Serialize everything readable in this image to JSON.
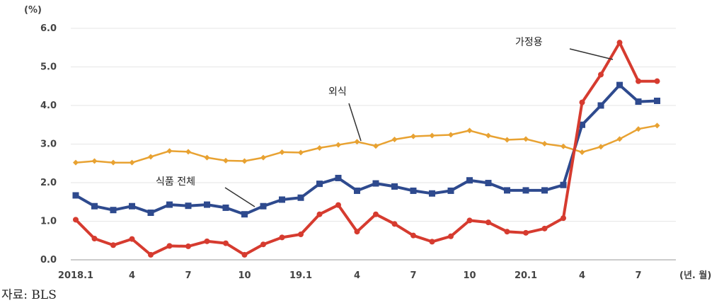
{
  "chart_data": {
    "type": "line",
    "y_unit_label": "(%)",
    "x_unit_label": "(년. 월)",
    "ylim": [
      0,
      6
    ],
    "y_ticks": [
      "0.0",
      "1.0",
      "2.0",
      "3.0",
      "4.0",
      "5.0",
      "6.0"
    ],
    "grid": "horizontal",
    "x_tick_labels": [
      {
        "index": 0,
        "label": "2018.1"
      },
      {
        "index": 3,
        "label": "4"
      },
      {
        "index": 6,
        "label": "7"
      },
      {
        "index": 9,
        "label": "10"
      },
      {
        "index": 12,
        "label": "19.1"
      },
      {
        "index": 15,
        "label": "4"
      },
      {
        "index": 18,
        "label": "7"
      },
      {
        "index": 21,
        "label": "10"
      },
      {
        "index": 24,
        "label": "20.1"
      },
      {
        "index": 27,
        "label": "4"
      },
      {
        "index": 30,
        "label": "7"
      }
    ],
    "series": [
      {
        "name": "식품 전체",
        "color": "#2e4a8e",
        "marker": "square",
        "values": [
          1.67,
          1.39,
          1.29,
          1.39,
          1.22,
          1.43,
          1.4,
          1.43,
          1.35,
          1.18,
          1.39,
          1.56,
          1.61,
          1.97,
          2.12,
          1.79,
          1.98,
          1.9,
          1.79,
          1.72,
          1.79,
          2.06,
          1.99,
          1.8,
          1.8,
          1.8,
          1.94,
          3.5,
          4.0,
          4.53,
          4.1,
          4.12
        ]
      },
      {
        "name": "외식",
        "color": "#e8a232",
        "marker": "diamond",
        "values": [
          2.52,
          2.56,
          2.52,
          2.52,
          2.67,
          2.82,
          2.8,
          2.65,
          2.57,
          2.56,
          2.65,
          2.79,
          2.78,
          2.9,
          2.98,
          3.06,
          2.95,
          3.12,
          3.2,
          3.22,
          3.24,
          3.35,
          3.22,
          3.11,
          3.13,
          3.01,
          2.94,
          2.79,
          2.93,
          3.13,
          3.39,
          3.48
        ]
      },
      {
        "name": "가정용",
        "color": "#d63b2f",
        "marker": "circle",
        "values": [
          1.04,
          0.55,
          0.38,
          0.54,
          0.13,
          0.36,
          0.35,
          0.48,
          0.43,
          0.13,
          0.4,
          0.58,
          0.66,
          1.18,
          1.42,
          0.73,
          1.18,
          0.93,
          0.63,
          0.47,
          0.61,
          1.02,
          0.97,
          0.73,
          0.7,
          0.81,
          1.08,
          4.08,
          4.8,
          5.63,
          4.63,
          4.63
        ]
      }
    ]
  },
  "annotations": [
    {
      "label": "가정용",
      "series": "가정용"
    },
    {
      "label": "외식",
      "series": "외식"
    },
    {
      "label": "식품 전체",
      "series": "식품 전체"
    }
  ],
  "source_label": "자료: BLS"
}
